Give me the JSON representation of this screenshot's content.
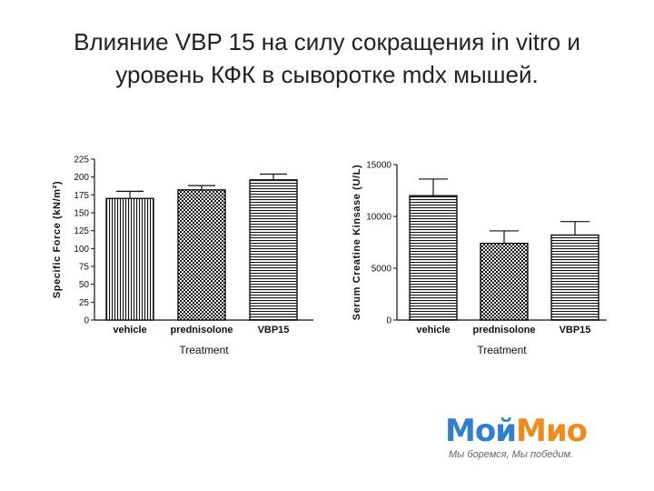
{
  "title": {
    "line1": "Влияние VBP 15 на силу сокращения in vitro и",
    "line2": "уровень КФК в сыворотке mdx мышей."
  },
  "chart_data": [
    {
      "type": "bar",
      "xlabel": "Treatment",
      "ylabel": "Specific Force (kN/m²)",
      "categories": [
        "vehicle",
        "prednisolone",
        "VBP15"
      ],
      "values": [
        170,
        182,
        196
      ],
      "errors": [
        10,
        6,
        8
      ],
      "ylim": [
        0,
        225
      ],
      "yticks": [
        "0",
        "25",
        "50",
        "75",
        "100",
        "125",
        "150",
        "175",
        "200",
        "225"
      ],
      "patterns": [
        "vertical-hatch",
        "checker",
        "horizontal-hatch"
      ],
      "grid": false,
      "legend": "none"
    },
    {
      "type": "bar",
      "xlabel": "Treatment",
      "ylabel": "Serum Creatine Kinsase (U/L)",
      "categories": [
        "vehicle",
        "prednisolone",
        "VBP15"
      ],
      "values": [
        12000,
        7400,
        8200
      ],
      "errors": [
        1600,
        1200,
        1300
      ],
      "ylim": [
        0,
        15000
      ],
      "yticks": [
        "0",
        "5000",
        "10000",
        "15000"
      ],
      "patterns": [
        "horizontal-hatch",
        "checker",
        "horizontal-hatch"
      ],
      "grid": false,
      "legend": "none"
    }
  ],
  "logo": {
    "word_part1": "Мой",
    "word_part2": "Мио",
    "slogan": "Мы боремся, Мы победим.",
    "colors": {
      "primary": "#2f7fd0",
      "accent": "#f08a1d"
    }
  }
}
